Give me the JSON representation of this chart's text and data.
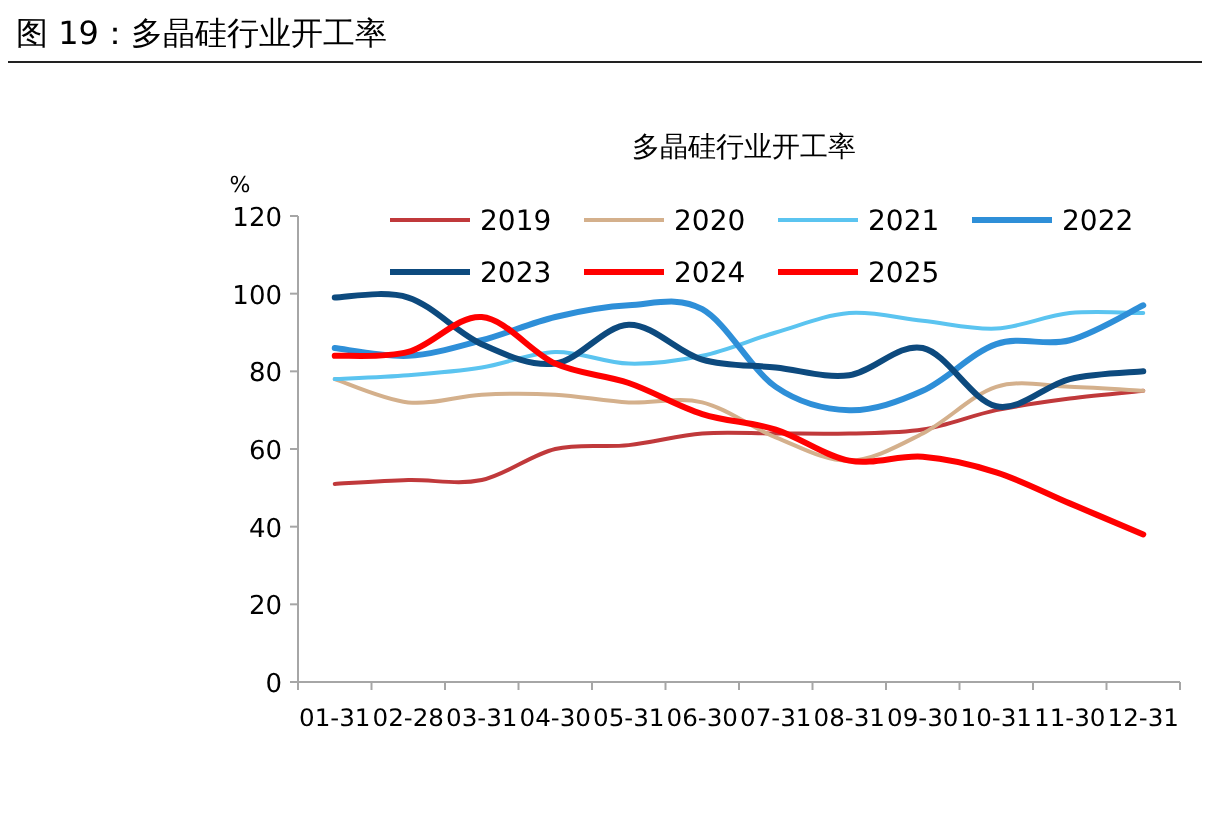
{
  "chart_data": {
    "type": "line",
    "title": "图 19：多晶硅行业开工率",
    "subtitle": "多晶硅行业开工率",
    "ylabel": "%",
    "categories": [
      "01-31",
      "02-28",
      "03-31",
      "04-30",
      "05-31",
      "06-30",
      "07-31",
      "08-31",
      "09-30",
      "10-31",
      "11-30",
      "12-31"
    ],
    "ylim": [
      0,
      120
    ],
    "yticks": [
      0,
      20,
      40,
      60,
      80,
      100,
      120
    ],
    "grid": false,
    "legend": "top",
    "marker": "none",
    "line_style": "solid",
    "series": [
      {
        "name": "2019",
        "color": "#c0393b",
        "values": [
          51,
          52,
          52,
          60,
          61,
          64,
          64,
          64,
          65,
          70,
          73,
          75
        ]
      },
      {
        "name": "2020",
        "color": "#d4b08c",
        "values": [
          78,
          72,
          74,
          74,
          72,
          72,
          63,
          57,
          64,
          76,
          76,
          75
        ]
      },
      {
        "name": "2021",
        "color": "#5bc4f0",
        "values": [
          78,
          79,
          81,
          85,
          82,
          84,
          90,
          95,
          93,
          91,
          95,
          95
        ]
      },
      {
        "name": "2022",
        "color": "#2e8fd8",
        "values": [
          86,
          84,
          88,
          94,
          97,
          96,
          76,
          70,
          75,
          87,
          88,
          97
        ]
      },
      {
        "name": "2023",
        "color": "#0d4a7e",
        "values": [
          99,
          99,
          87,
          82,
          92,
          83,
          81,
          79,
          86,
          71,
          78,
          80
        ]
      },
      {
        "name": "2024",
        "color": "#ff0000",
        "values": [
          84,
          85,
          94,
          82,
          77,
          69,
          65,
          57,
          58,
          54,
          46,
          38
        ]
      },
      {
        "name": "2025",
        "color": "#ff0000",
        "values": [
          null,
          null,
          null,
          null,
          null,
          null,
          null,
          null,
          null,
          null,
          null,
          null
        ]
      }
    ]
  }
}
